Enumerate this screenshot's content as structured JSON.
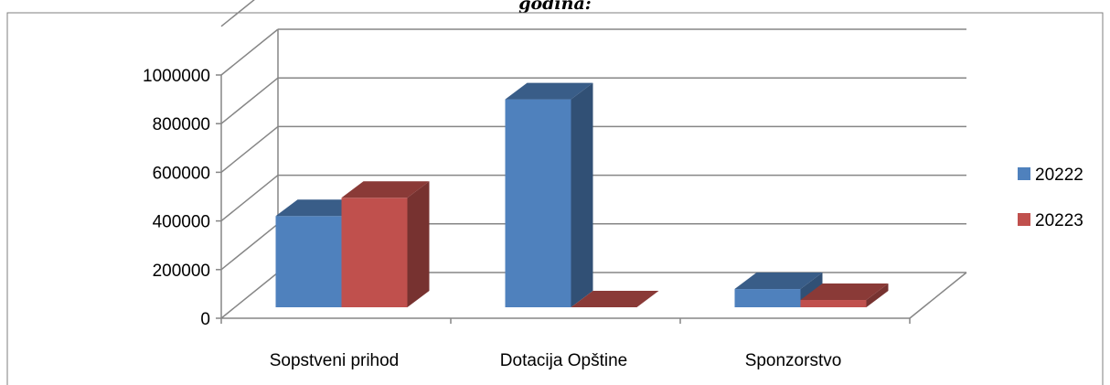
{
  "chart_data": {
    "type": "bar",
    "title": "godina:",
    "categories": [
      "Sopstveni prihod",
      "Dotacija Opštine",
      "Sponzorstvo"
    ],
    "series": [
      {
        "name": "20222",
        "values": [
          375000,
          855000,
          75000
        ],
        "color": "#4F81BD"
      },
      {
        "name": "20223",
        "values": [
          450000,
          0,
          30000
        ],
        "color": "#C0504D"
      }
    ],
    "ylim": [
      0,
      1000000
    ],
    "yticks": [
      0,
      200000,
      400000,
      600000,
      800000,
      1000000
    ],
    "grid": true,
    "legend": "right",
    "style": "3d-column"
  }
}
